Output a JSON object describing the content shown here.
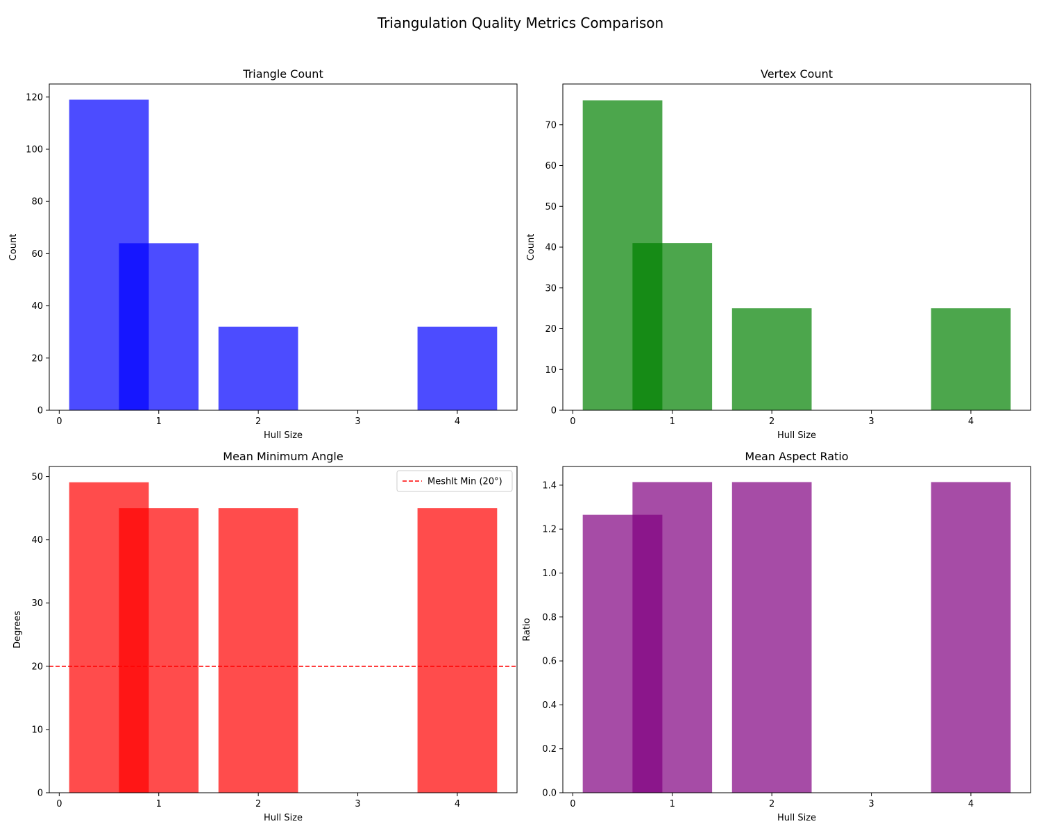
{
  "figure_title": "Triangulation Quality Metrics Comparison",
  "chart_data": [
    {
      "type": "bar",
      "title": "Triangle Count",
      "xlabel": "Hull Size",
      "ylabel": "Count",
      "color": "#0000ff",
      "alpha": 0.7,
      "xlim": [
        -0.1,
        4.6
      ],
      "ylim": [
        0,
        125
      ],
      "xticks": [
        0,
        1,
        2,
        3,
        4
      ],
      "yticks": [
        0,
        20,
        40,
        60,
        80,
        100,
        120
      ],
      "bars": [
        {
          "x": 0.5,
          "width": 0.8,
          "value": 119
        },
        {
          "x": 1.0,
          "width": 0.8,
          "value": 64
        },
        {
          "x": 2.0,
          "width": 0.8,
          "value": 32
        },
        {
          "x": 4.0,
          "width": 0.8,
          "value": 32
        }
      ]
    },
    {
      "type": "bar",
      "title": "Vertex Count",
      "xlabel": "Hull Size",
      "ylabel": "Count",
      "color": "#008000",
      "alpha": 0.7,
      "xlim": [
        -0.1,
        4.6
      ],
      "ylim": [
        0,
        80
      ],
      "xticks": [
        0,
        1,
        2,
        3,
        4
      ],
      "yticks": [
        0,
        10,
        20,
        30,
        40,
        50,
        60,
        70
      ],
      "bars": [
        {
          "x": 0.5,
          "width": 0.8,
          "value": 76
        },
        {
          "x": 1.0,
          "width": 0.8,
          "value": 41
        },
        {
          "x": 2.0,
          "width": 0.8,
          "value": 25
        },
        {
          "x": 4.0,
          "width": 0.8,
          "value": 25
        }
      ]
    },
    {
      "type": "bar",
      "title": "Mean Minimum Angle",
      "xlabel": "Hull Size",
      "ylabel": "Degrees",
      "color": "#ff0000",
      "alpha": 0.7,
      "xlim": [
        -0.1,
        4.6
      ],
      "ylim": [
        0,
        51.6
      ],
      "xticks": [
        0,
        1,
        2,
        3,
        4
      ],
      "yticks": [
        0,
        10,
        20,
        30,
        40,
        50
      ],
      "bars": [
        {
          "x": 0.5,
          "width": 0.8,
          "value": 49.1
        },
        {
          "x": 1.0,
          "width": 0.8,
          "value": 45
        },
        {
          "x": 2.0,
          "width": 0.8,
          "value": 45
        },
        {
          "x": 4.0,
          "width": 0.8,
          "value": 45
        }
      ],
      "reference_line": {
        "y": 20,
        "color": "#ff0000",
        "style": "dashed",
        "label": "MeshIt Min (20°)"
      },
      "legend": {
        "position": "upper right",
        "entries": [
          "MeshIt Min (20°)"
        ]
      }
    },
    {
      "type": "bar",
      "title": "Mean Aspect Ratio",
      "xlabel": "Hull Size",
      "ylabel": "Ratio",
      "color": "#800080",
      "alpha": 0.7,
      "xlim": [
        -0.1,
        4.6
      ],
      "ylim": [
        0,
        1.485
      ],
      "xticks": [
        0,
        1,
        2,
        3,
        4
      ],
      "yticks": [
        0.0,
        0.2,
        0.4,
        0.6,
        0.8,
        1.0,
        1.2,
        1.4
      ],
      "tick_decimals": 1,
      "bars": [
        {
          "x": 0.5,
          "width": 0.8,
          "value": 1.265
        },
        {
          "x": 1.0,
          "width": 0.8,
          "value": 1.414
        },
        {
          "x": 2.0,
          "width": 0.8,
          "value": 1.414
        },
        {
          "x": 4.0,
          "width": 0.8,
          "value": 1.414
        }
      ]
    }
  ]
}
